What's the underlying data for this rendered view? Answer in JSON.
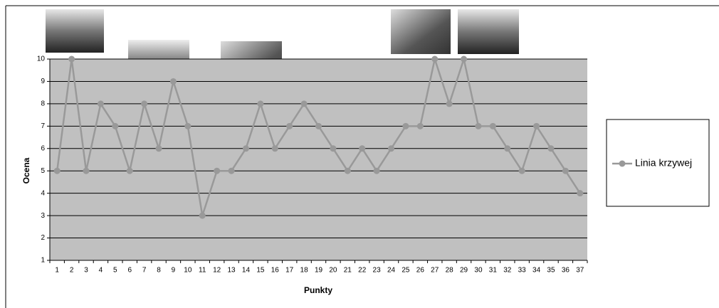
{
  "chart_data": {
    "type": "line",
    "xlabel": "Punkty",
    "ylabel": "Ocena",
    "categories": [
      "1",
      "2",
      "3",
      "4",
      "5",
      "6",
      "7",
      "8",
      "9",
      "10",
      "11",
      "12",
      "13",
      "14",
      "15",
      "16",
      "17",
      "18",
      "19",
      "20",
      "21",
      "22",
      "23",
      "24",
      "25",
      "26",
      "27",
      "28",
      "29",
      "30",
      "31",
      "32",
      "33",
      "34",
      "35",
      "36",
      "37"
    ],
    "series": [
      {
        "name": "Linia krzywej",
        "color": "#999999",
        "values": [
          5,
          10,
          5,
          8,
          7,
          5,
          8,
          6,
          9,
          7,
          3,
          5,
          5,
          6,
          8,
          6,
          7,
          8,
          7,
          6,
          5,
          6,
          5,
          6,
          7,
          7,
          10,
          8,
          10,
          7,
          7,
          6,
          5,
          7,
          6,
          5,
          4
        ]
      }
    ],
    "ylim": [
      1,
      10
    ],
    "yticks": [
      1,
      2,
      3,
      4,
      5,
      6,
      7,
      8,
      9,
      10
    ],
    "grid": true,
    "plot_color": "#c0c0c0"
  }
}
